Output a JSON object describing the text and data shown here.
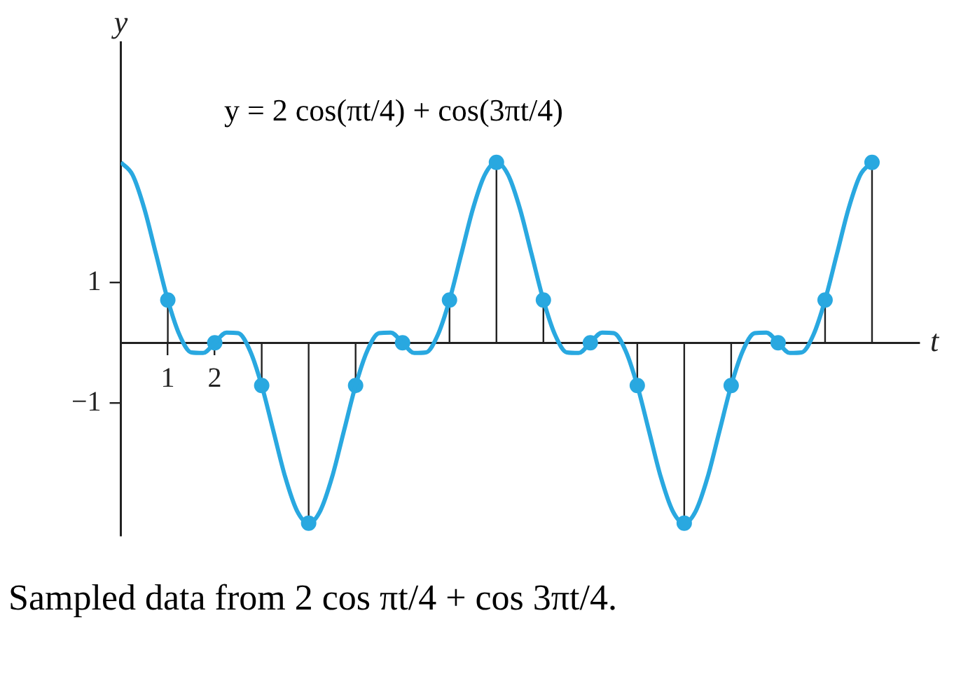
{
  "chart_data": {
    "type": "line",
    "title": "y = 2 cos(πt/4) + cos(3πt/4)",
    "xlabel": "t",
    "ylabel": "y",
    "annotations": [
      "Sampled data from 2 cos πt/4 + cos 3πt/4."
    ],
    "xlim": [
      0,
      17
    ],
    "ylim": [
      -3.2,
      5
    ],
    "xticks": [
      1,
      2
    ],
    "yticks": [
      {
        "value": 1,
        "label": "1"
      },
      {
        "value": -1,
        "label": "−1"
      }
    ],
    "grid": false,
    "legend": false,
    "series": [
      {
        "color": "#29a8e0",
        "marker": "none",
        "x": [
          0,
          0.25,
          0.5,
          0.75,
          1,
          1.25,
          1.5,
          1.75,
          2,
          2.25,
          2.5,
          2.75,
          3,
          3.25,
          3.5,
          3.75,
          4,
          4.25,
          4.5,
          4.75,
          5,
          5.25,
          5.5,
          5.75,
          6,
          6.25,
          6.5,
          6.75,
          7,
          7.25,
          7.5,
          7.75,
          8,
          8.25,
          8.5,
          8.75,
          9,
          9.25,
          9.5,
          9.75,
          10,
          10.25,
          10.5,
          10.75,
          11,
          11.25,
          11.5,
          11.75,
          12,
          12.25,
          12.5,
          12.75,
          13,
          13.25,
          13.5,
          13.75,
          14,
          14.25,
          14.5,
          14.75,
          15,
          15.25,
          15.5,
          15.75,
          16
        ],
        "values": [
          3,
          2.79,
          2.23,
          1.47,
          0.71,
          0.13,
          -0.16,
          -0.17,
          0,
          0.17,
          0.16,
          -0.13,
          -0.71,
          -1.47,
          -2.23,
          -2.79,
          -3,
          -2.79,
          -2.23,
          -1.47,
          -0.71,
          -0.13,
          0.16,
          0.17,
          0,
          -0.17,
          -0.16,
          0.13,
          0.71,
          1.47,
          2.23,
          2.79,
          3,
          2.79,
          2.23,
          1.47,
          0.71,
          0.13,
          -0.16,
          -0.17,
          0,
          0.17,
          0.16,
          -0.13,
          -0.71,
          -1.47,
          -2.23,
          -2.79,
          -3,
          -2.79,
          -2.23,
          -1.47,
          -0.71,
          -0.13,
          0.16,
          0.17,
          0,
          -0.17,
          -0.16,
          0.13,
          0.71,
          1.47,
          2.23,
          2.79,
          3
        ]
      },
      {
        "type": "lollipop",
        "marker": "circle",
        "color": "#29a8e0",
        "x": [
          1,
          2,
          3,
          4,
          5,
          6,
          7,
          8,
          9,
          10,
          11,
          12,
          13,
          14,
          15,
          16
        ],
        "values": [
          0.71,
          0,
          -0.71,
          -3,
          -0.71,
          0,
          0.71,
          3,
          0.71,
          0,
          -0.71,
          -3,
          -0.71,
          0,
          0.71,
          3
        ]
      }
    ]
  }
}
